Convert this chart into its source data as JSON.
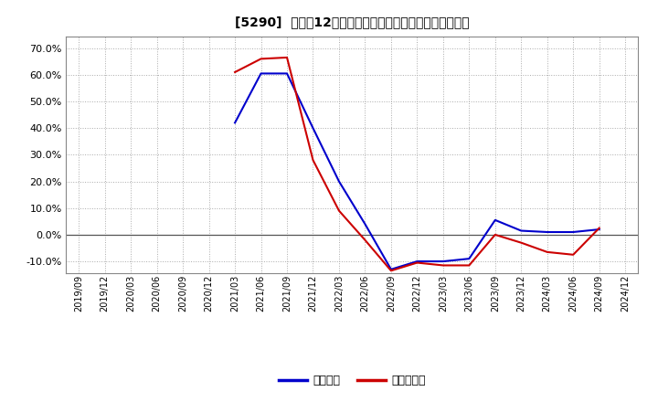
{
  "title": "[5290]  利益の12か月移動合計の対前年同期増減率の推移",
  "background_color": "#ffffff",
  "plot_bg_color": "#ffffff",
  "grid_color": "#aaaaaa",
  "ylim": [
    -0.145,
    0.745
  ],
  "yticks": [
    -0.1,
    0.0,
    0.1,
    0.2,
    0.3,
    0.4,
    0.5,
    0.6,
    0.7
  ],
  "legend_labels": [
    "経常利益",
    "当期純利益"
  ],
  "legend_colors": [
    "#0000cc",
    "#cc0000"
  ],
  "x_dates": [
    "2019/09",
    "2019/12",
    "2020/03",
    "2020/06",
    "2020/09",
    "2020/12",
    "2021/03",
    "2021/06",
    "2021/09",
    "2021/12",
    "2022/03",
    "2022/06",
    "2022/09",
    "2022/12",
    "2023/03",
    "2023/06",
    "2023/09",
    "2023/12",
    "2024/03",
    "2024/06",
    "2024/09",
    "2024/12"
  ],
  "operating_profit": [
    null,
    null,
    null,
    null,
    null,
    null,
    0.42,
    0.605,
    0.605,
    0.4,
    0.2,
    0.04,
    -0.13,
    -0.1,
    -0.1,
    -0.09,
    0.055,
    0.015,
    0.01,
    0.01,
    0.02,
    null
  ],
  "net_profit": [
    null,
    null,
    null,
    null,
    null,
    null,
    0.61,
    0.66,
    0.665,
    0.28,
    0.09,
    -0.02,
    -0.135,
    -0.105,
    -0.115,
    -0.115,
    0.0,
    -0.03,
    -0.065,
    -0.075,
    0.025,
    null
  ]
}
